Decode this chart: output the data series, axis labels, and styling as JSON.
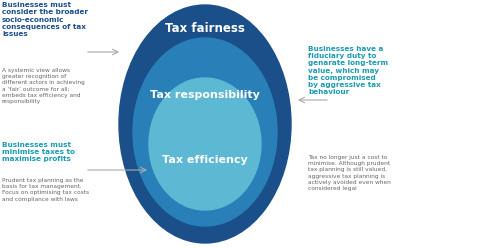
{
  "bg_color": "#ffffff",
  "ellipse_outer_color": "#1a4f8a",
  "ellipse_mid_color": "#2980b9",
  "ellipse_inner_color": "#5db8d4",
  "label_fairness": "Tax fairness",
  "label_responsibility": "Tax responsibility",
  "label_efficiency": "Tax efficiency",
  "label_color": "#ffffff",
  "arrow_color": "#aaaaaa",
  "heading_color_dark": "#1a4f8a",
  "heading_color_teal": "#1a9bb0",
  "text_color_body": "#666666",
  "left_top_heading": "Businesses must\nconsider the broader\nsocio-economic\nconsequences of tax\nissues",
  "left_top_body": "A systemic view allows\ngreater recognition of\ndifferent actors in achieving\na ‘fair’ outcome for all;\nembeds tax efficiency and\nresponsibility",
  "left_bottom_heading": "Businesses must\nminimise taxes to\nmaximise profits",
  "left_bottom_body": "Prudent tax planning as the\nbasis for tax management.\nFocus on optimising tax costs\nand compliance with laws",
  "right_top_heading": "Businesses have a\nfiduciary duty to\ngenarate long-term\nvalue, which may\nbe compromised\nby aggressive tax\nbehaviour",
  "right_bottom_body": "Tax no longer just a cost to\nminimise. Although prudent\ntax planning is still valued,\naggressive tax planning is\nactively avoided even when\nconsidered legal"
}
